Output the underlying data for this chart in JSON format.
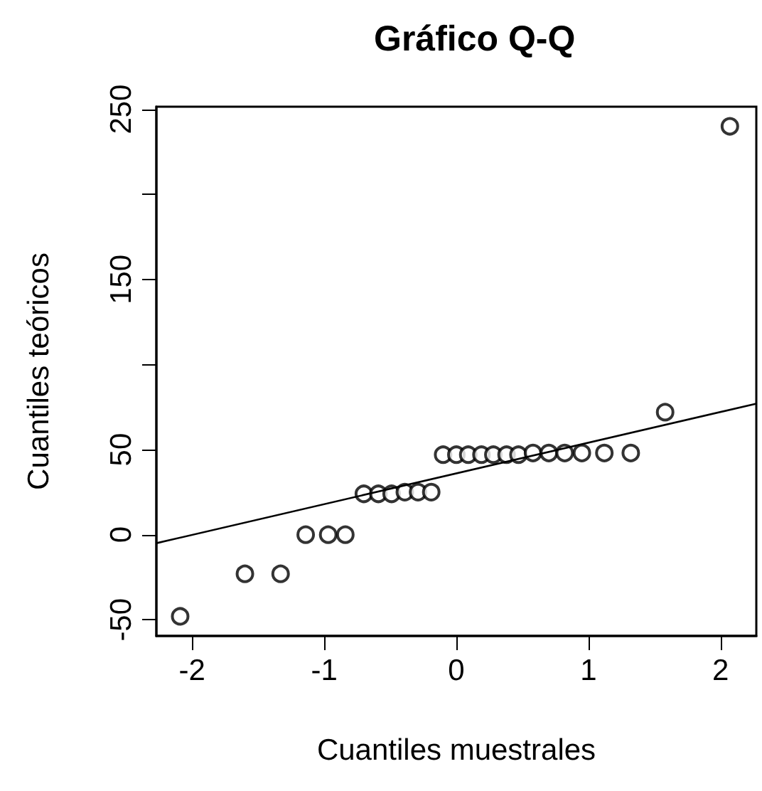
{
  "chart_data": {
    "type": "scatter",
    "title": "Gráfico Q-Q",
    "xlabel": "Cuantiles muestrales",
    "ylabel": "Cuantiles teóricos",
    "xlim": [
      -2.27,
      2.27
    ],
    "xticks": [
      -2,
      -1,
      0,
      1,
      2
    ],
    "ylim": [
      -59.5,
      251.5
    ],
    "yticks": [
      -50,
      0,
      50,
      {
        "value": 100,
        "label": null
      },
      150,
      {
        "value": 200,
        "label": null
      },
      250
    ],
    "marker": "circle",
    "series": [
      {
        "color": "#000000",
        "x": [
          -2.09,
          -1.6,
          -1.33,
          -1.14,
          -0.97,
          -0.84,
          -0.7,
          -0.59,
          -0.49,
          -0.39,
          -0.29,
          -0.19,
          -0.1,
          0.0,
          0.09,
          0.19,
          0.28,
          0.38,
          0.47,
          0.58,
          0.7,
          0.82,
          0.95,
          1.12,
          1.32,
          1.58,
          2.07
        ],
        "values": [
          -48,
          -23,
          -23,
          0,
          0,
          0,
          24,
          24,
          24,
          25,
          25,
          25,
          47,
          47,
          47,
          47,
          47,
          47,
          47,
          48,
          48,
          48,
          48,
          48,
          48,
          72,
          240
        ]
      },
      {
        "type": "line",
        "color": "#000000",
        "line_style": "solid",
        "marker": "none",
        "x": [
          -2.27,
          2.27
        ],
        "values": [
          -5,
          77
        ]
      }
    ]
  }
}
